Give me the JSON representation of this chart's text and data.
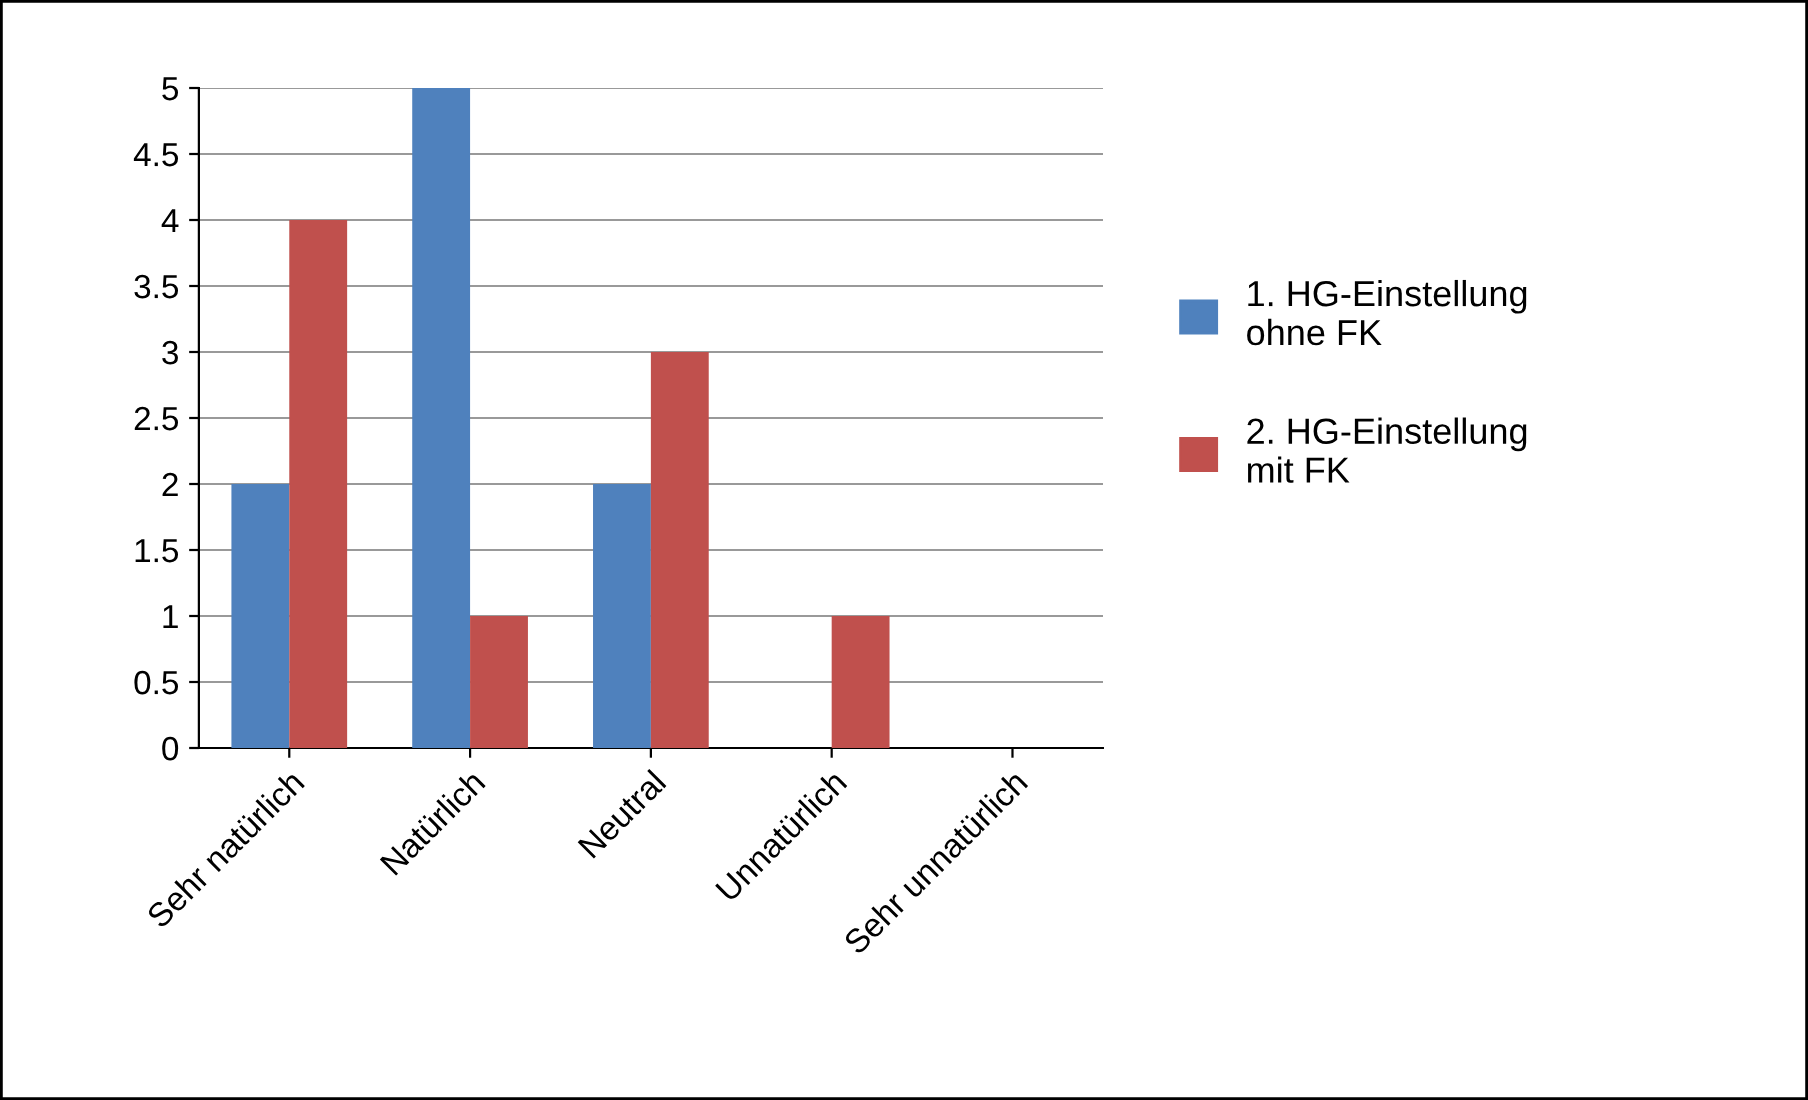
{
  "chart_data": {
    "type": "bar",
    "categories": [
      "Sehr natürlich",
      "Natürlich",
      "Neutral",
      "Unnatürlich",
      "Sehr unnatürlich"
    ],
    "series": [
      {
        "name": "1. HG-Einstellung\nohne FK",
        "color": "#4f81bd",
        "values": [
          2,
          5,
          2,
          0,
          0
        ]
      },
      {
        "name": "2. HG-Einstellung\nmit FK",
        "color": "#c0504d",
        "values": [
          4,
          1,
          3,
          1,
          0
        ]
      }
    ],
    "ylim": [
      0,
      5
    ],
    "yticks": [
      0,
      0.5,
      1,
      1.5,
      2,
      2.5,
      3,
      3.5,
      4,
      4.5,
      5
    ],
    "grid": "y",
    "legend": "right"
  }
}
